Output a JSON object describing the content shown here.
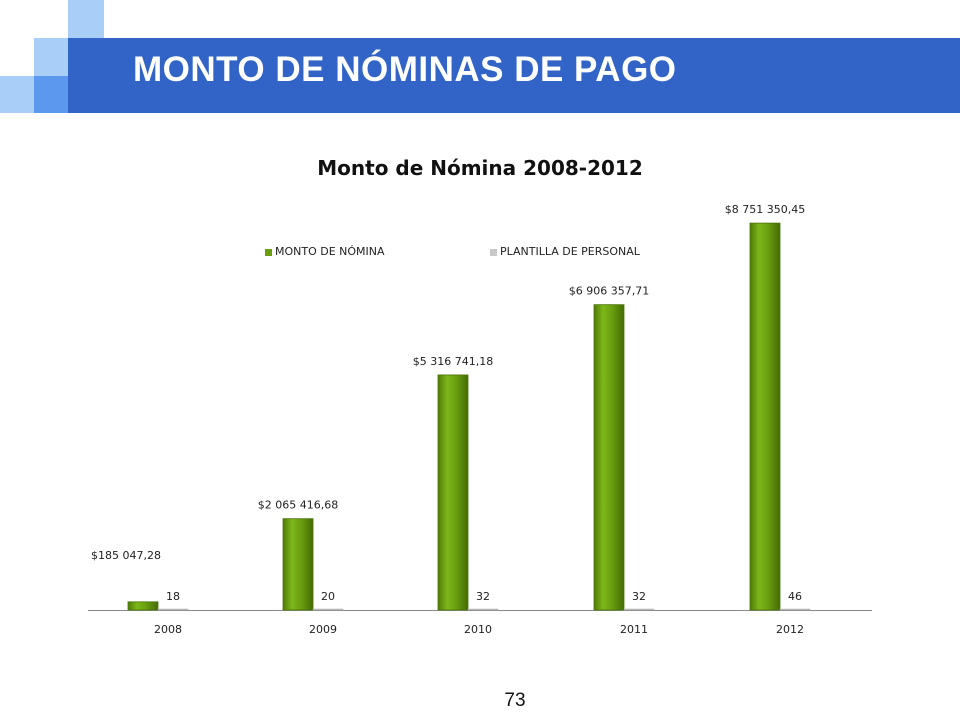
{
  "slide": {
    "title": "MONTO DE NÓMINAS DE PAGO",
    "page_number": "73",
    "colors": {
      "header": "#3264c8",
      "square_light": "#a9cef8",
      "square_mid": "#5d98ef",
      "square_dark": "#3264c8"
    }
  },
  "chart_data": {
    "type": "bar",
    "title": "Monto de Nómina  2008-2012",
    "categories": [
      "2008",
      "2009",
      "2010",
      "2011",
      "2012"
    ],
    "series": [
      {
        "name": "MONTO DE NÓMINA",
        "color": "#6a9e0f",
        "values": [
          185047.28,
          2065416.68,
          5316741.18,
          6906357.71,
          8751350.45
        ],
        "labels": [
          "$185 047,28",
          "$2 065 416,68",
          "$5 316 741,18",
          "$6 906 357,71",
          "$8 751 350,45"
        ]
      },
      {
        "name": "PLANTILLA DE PERSONAL",
        "color": "#c8c8c8",
        "values": [
          18,
          20,
          32,
          32,
          46
        ],
        "labels": [
          "18",
          "20",
          "32",
          "32",
          "46"
        ]
      }
    ],
    "legend_position": "top",
    "grid": false,
    "ylim": [
      0,
      9500000
    ]
  }
}
